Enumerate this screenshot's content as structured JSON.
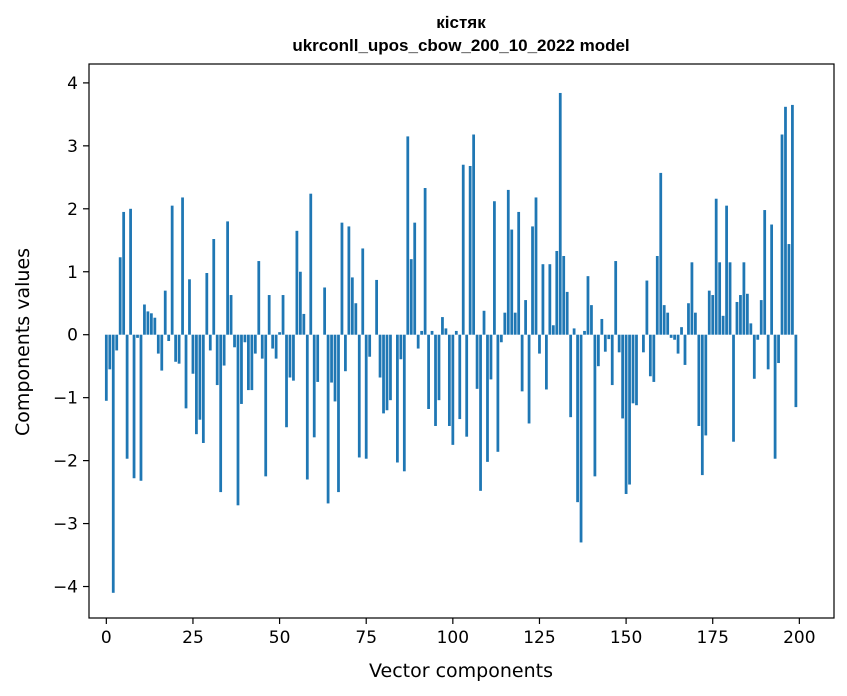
{
  "chart_data": {
    "type": "bar",
    "title": "кістяк",
    "subtitle": "ukrconll_upos_cbow_200_10_2022 model",
    "xlabel": "Vector components",
    "ylabel": "Components values",
    "xlim": [
      -5,
      210
    ],
    "ylim": [
      -4.5,
      4.3
    ],
    "xticks": [
      0,
      25,
      50,
      75,
      100,
      125,
      150,
      175,
      200
    ],
    "yticks": [
      -4,
      -3,
      -2,
      -1,
      0,
      1,
      2,
      3,
      4
    ],
    "xtick_labels": [
      "0",
      "25",
      "50",
      "75",
      "100",
      "125",
      "150",
      "175",
      "200"
    ],
    "ytick_labels": [
      "−4",
      "−3",
      "−2",
      "−1",
      "0",
      "1",
      "2",
      "3",
      "4"
    ],
    "grid": false,
    "bar_color": "#1f77b4",
    "x": [
      0,
      1,
      2,
      3,
      4,
      5,
      6,
      7,
      8,
      9,
      10,
      11,
      12,
      13,
      14,
      15,
      16,
      17,
      18,
      19,
      20,
      21,
      22,
      23,
      24,
      25,
      26,
      27,
      28,
      29,
      30,
      31,
      32,
      33,
      34,
      35,
      36,
      37,
      38,
      39,
      40,
      41,
      42,
      43,
      44,
      45,
      46,
      47,
      48,
      49,
      50,
      51,
      52,
      53,
      54,
      55,
      56,
      57,
      58,
      59,
      60,
      61,
      62,
      63,
      64,
      65,
      66,
      67,
      68,
      69,
      70,
      71,
      72,
      73,
      74,
      75,
      76,
      77,
      78,
      79,
      80,
      81,
      82,
      83,
      84,
      85,
      86,
      87,
      88,
      89,
      90,
      91,
      92,
      93,
      94,
      95,
      96,
      97,
      98,
      99,
      100,
      101,
      102,
      103,
      104,
      105,
      106,
      107,
      108,
      109,
      110,
      111,
      112,
      113,
      114,
      115,
      116,
      117,
      118,
      119,
      120,
      121,
      122,
      123,
      124,
      125,
      126,
      127,
      128,
      129,
      130,
      131,
      132,
      133,
      134,
      135,
      136,
      137,
      138,
      139,
      140,
      141,
      142,
      143,
      144,
      145,
      146,
      147,
      148,
      149,
      150,
      151,
      152,
      153,
      154,
      155,
      156,
      157,
      158,
      159,
      160,
      161,
      162,
      163,
      164,
      165,
      166,
      167,
      168,
      169,
      170,
      171,
      172,
      173,
      174,
      175,
      176,
      177,
      178,
      179,
      180,
      181,
      182,
      183,
      184,
      185,
      186,
      187,
      188,
      189,
      190,
      191,
      192,
      193,
      194,
      195,
      196,
      197,
      198,
      199
    ],
    "values": [
      -1.05,
      -0.55,
      -4.1,
      -0.25,
      1.23,
      1.95,
      -1.97,
      2.0,
      -2.28,
      -0.05,
      -2.32,
      0.48,
      0.37,
      0.34,
      0.27,
      -0.3,
      -0.57,
      0.7,
      -0.1,
      2.05,
      -0.43,
      -0.46,
      2.18,
      -1.17,
      0.88,
      -0.62,
      -1.58,
      -1.35,
      -1.72,
      0.98,
      -0.25,
      1.52,
      -0.8,
      -2.5,
      -0.49,
      1.8,
      0.63,
      -0.2,
      -2.71,
      -1.1,
      -0.12,
      -0.88,
      -0.88,
      -0.3,
      1.17,
      -0.38,
      -2.25,
      0.63,
      -0.22,
      -0.38,
      0.04,
      0.63,
      -1.47,
      -0.68,
      -0.73,
      1.65,
      1.0,
      0.33,
      -2.3,
      2.24,
      -1.63,
      -0.75,
      0.0,
      0.75,
      -2.68,
      -0.76,
      -1.06,
      -2.5,
      1.78,
      -0.58,
      1.72,
      0.91,
      0.5,
      -1.95,
      1.37,
      -1.97,
      -0.35,
      0.0,
      0.87,
      -0.68,
      -1.25,
      -1.2,
      -1.04,
      0.0,
      -2.03,
      -0.39,
      -2.17,
      3.15,
      1.2,
      1.78,
      -0.22,
      0.06,
      2.33,
      -1.18,
      0.06,
      -1.45,
      -1.04,
      0.28,
      0.1,
      -1.45,
      -1.75,
      0.06,
      -1.34,
      2.7,
      -1.62,
      2.68,
      3.18,
      -0.86,
      -2.48,
      0.38,
      -2.02,
      -0.71,
      2.12,
      -1.86,
      -0.12,
      0.35,
      2.3,
      1.67,
      0.35,
      1.95,
      -0.9,
      0.55,
      -1.41,
      1.72,
      2.18,
      -0.3,
      1.12,
      -0.87,
      1.12,
      0.15,
      1.33,
      3.84,
      1.25,
      0.68,
      -1.31,
      0.1,
      -2.66,
      -3.3,
      0.06,
      0.93,
      0.47,
      -2.25,
      -0.5,
      0.25,
      -0.27,
      -0.07,
      -0.8,
      1.17,
      -0.28,
      -1.33,
      -2.53,
      -2.38,
      -1.09,
      -1.12,
      0.0,
      -0.28,
      0.86,
      -0.66,
      -0.75,
      1.25,
      2.57,
      0.47,
      0.35,
      -0.05,
      -0.08,
      -0.3,
      0.12,
      -0.48,
      0.5,
      1.15,
      0.35,
      -1.45,
      -2.23,
      -1.6,
      0.7,
      0.63,
      2.16,
      1.15,
      0.3,
      2.05,
      1.15,
      -1.7,
      0.52,
      0.63,
      1.15,
      0.65,
      0.18,
      -0.7,
      -0.08,
      0.55,
      1.98,
      -0.55,
      1.75,
      -1.97,
      -0.45,
      3.18,
      3.62,
      1.44,
      3.65,
      -1.15
    ]
  }
}
